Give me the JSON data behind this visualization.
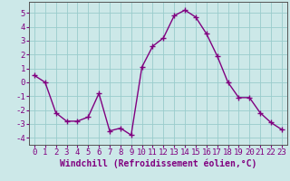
{
  "x": [
    0,
    1,
    2,
    3,
    4,
    5,
    6,
    7,
    8,
    9,
    10,
    11,
    12,
    13,
    14,
    15,
    16,
    17,
    18,
    19,
    20,
    21,
    22,
    23
  ],
  "y": [
    0.5,
    0.0,
    -2.2,
    -2.8,
    -2.8,
    -2.5,
    -0.8,
    -3.5,
    -3.3,
    -3.8,
    1.1,
    2.6,
    3.2,
    4.8,
    5.2,
    4.7,
    3.5,
    1.9,
    0.0,
    -1.1,
    -1.1,
    -2.2,
    -2.9,
    -3.4
  ],
  "line_color": "#800080",
  "marker": "+",
  "marker_size": 4,
  "marker_linewidth": 1.0,
  "bg_color": "#cce8e8",
  "grid_color": "#99cccc",
  "xlabel": "Windchill (Refroidissement éolien,°C)",
  "xlabel_fontsize": 7,
  "tick_fontsize": 6.5,
  "ylim": [
    -4.5,
    5.8
  ],
  "xlim": [
    -0.5,
    23.5
  ],
  "yticks": [
    -4,
    -3,
    -2,
    -1,
    0,
    1,
    2,
    3,
    4,
    5
  ],
  "xticks": [
    0,
    1,
    2,
    3,
    4,
    5,
    6,
    7,
    8,
    9,
    10,
    11,
    12,
    13,
    14,
    15,
    16,
    17,
    18,
    19,
    20,
    21,
    22,
    23
  ],
  "line_width": 1.0,
  "text_color": "#800080",
  "spine_color": "#555555"
}
